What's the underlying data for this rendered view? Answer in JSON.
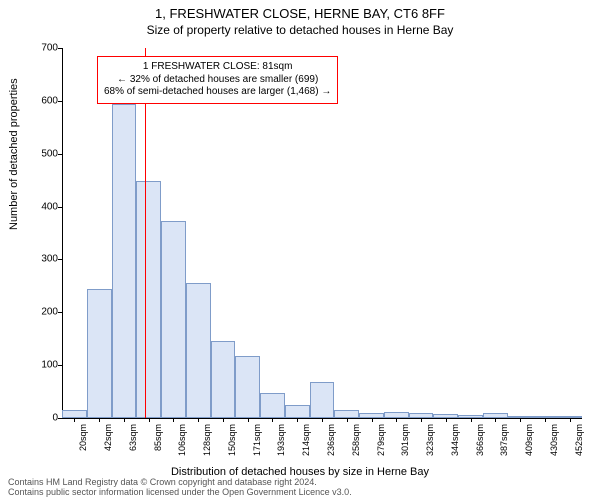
{
  "title": "1, FRESHWATER CLOSE, HERNE BAY, CT6 8FF",
  "subtitle": "Size of property relative to detached houses in Herne Bay",
  "y_axis_label": "Number of detached properties",
  "x_axis_label": "Distribution of detached houses by size in Herne Bay",
  "footer_line1": "Contains HM Land Registry data © Crown copyright and database right 2024.",
  "footer_line2": "Contains public sector information licensed under the Open Government Licence v3.0.",
  "chart": {
    "type": "histogram",
    "ylim": [
      0,
      700
    ],
    "ytick_step": 100,
    "x_categories": [
      "20sqm",
      "42sqm",
      "63sqm",
      "85sqm",
      "106sqm",
      "128sqm",
      "150sqm",
      "171sqm",
      "193sqm",
      "214sqm",
      "236sqm",
      "258sqm",
      "279sqm",
      "301sqm",
      "323sqm",
      "344sqm",
      "366sqm",
      "387sqm",
      "409sqm",
      "430sqm",
      "452sqm"
    ],
    "values": [
      15,
      245,
      595,
      448,
      372,
      255,
      145,
      118,
      48,
      25,
      68,
      15,
      10,
      12,
      10,
      8,
      5,
      10,
      0,
      0,
      2
    ],
    "bar_fill": "#dbe5f6",
    "bar_border": "#7f9cc9",
    "annotation_line_color": "#ff0000",
    "annotation_border": "#ff0000",
    "background": "#ffffff",
    "axis_color": "#000000",
    "bar_width_ratio": 1.0,
    "title_fontsize": 13,
    "subtitle_fontsize": 12,
    "axis_label_fontsize": 11,
    "tick_fontsize": 10,
    "xtick_fontsize": 9,
    "annotation_fontsize": 10
  },
  "marker": {
    "value_label": "81sqm",
    "position_index": 2.85,
    "box": {
      "line1": "1 FRESHWATER CLOSE: 81sqm",
      "line2": "← 32% of detached houses are smaller (699)",
      "line3": "68% of semi-detached houses are larger (1,468) →"
    }
  }
}
